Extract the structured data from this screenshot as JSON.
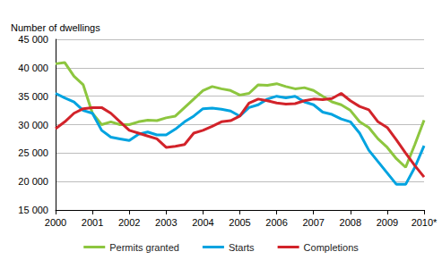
{
  "chart_data": {
    "type": "line",
    "y_label": "Number of dwellings",
    "categories": [
      "2000",
      null,
      null,
      null,
      "2001",
      null,
      null,
      null,
      "2002",
      null,
      null,
      null,
      "2003",
      null,
      null,
      null,
      "2004",
      null,
      null,
      null,
      "2005",
      null,
      null,
      null,
      "2006",
      null,
      null,
      null,
      "2007",
      null,
      null,
      null,
      "2008",
      null,
      null,
      null,
      "2009",
      null,
      null,
      null,
      "2010*"
    ],
    "series": [
      {
        "name": "Permits granted",
        "color": "#8dc63f",
        "values": [
          40700,
          40900,
          38500,
          37000,
          32000,
          30000,
          30500,
          30000,
          30000,
          30500,
          30800,
          30700,
          31200,
          31500,
          33000,
          34500,
          36000,
          36700,
          36300,
          36000,
          35200,
          35500,
          37000,
          36900,
          37200,
          36700,
          36300,
          36500,
          36000,
          35000,
          34000,
          33500,
          32500,
          30500,
          29500,
          27500,
          26000,
          24000,
          22500,
          26500,
          30800
        ]
      },
      {
        "name": "Starts",
        "color": "#00a3e0",
        "values": [
          35500,
          34700,
          34000,
          32500,
          32000,
          29000,
          27800,
          27500,
          27200,
          28300,
          28700,
          28200,
          28200,
          29200,
          30500,
          31500,
          32800,
          32900,
          32700,
          32400,
          31500,
          33000,
          33500,
          34500,
          35000,
          34700,
          35000,
          34000,
          33500,
          32200,
          31800,
          31000,
          30500,
          28500,
          25500,
          23500,
          21500,
          19500,
          19500,
          22500,
          26300
        ]
      },
      {
        "name": "Completions",
        "color": "#d2232a",
        "values": [
          29300,
          30500,
          32000,
          32800,
          33000,
          33000,
          32000,
          30500,
          29000,
          28500,
          28000,
          27500,
          26000,
          26200,
          26500,
          28500,
          29000,
          29700,
          30500,
          30700,
          31500,
          33800,
          34500,
          34200,
          33800,
          33600,
          33700,
          34200,
          34500,
          34400,
          34600,
          35500,
          34200,
          33200,
          32600,
          30500,
          29500,
          27300,
          25000,
          22800,
          20800
        ]
      }
    ],
    "ylim": [
      15000,
      45000
    ],
    "yticks": [
      {
        "value": 15000,
        "label": "15 000"
      },
      {
        "value": 20000,
        "label": "20 000"
      },
      {
        "value": 25000,
        "label": "25 000"
      },
      {
        "value": 30000,
        "label": "30 000"
      },
      {
        "value": 35000,
        "label": "35 000"
      },
      {
        "value": 40000,
        "label": "40 000"
      },
      {
        "value": 45000,
        "label": "45 000"
      }
    ],
    "grid": true,
    "legend": "bottom"
  }
}
